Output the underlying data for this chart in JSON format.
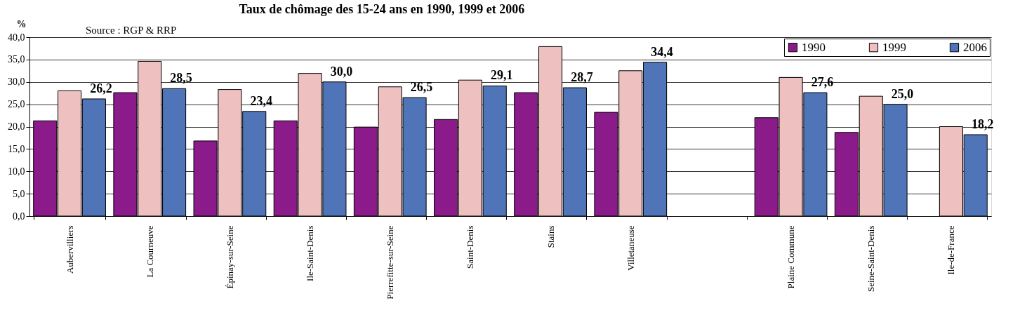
{
  "chart_data": {
    "type": "bar",
    "title": "Taux de chômage des 15-24 ans en 1990, 1999 et 2006",
    "ylabel": "%",
    "annotations": [
      "Source : RGP & RRP"
    ],
    "categories": [
      "Aubervilliers",
      "La Courneuve",
      "Épinay-sur-Seine",
      "Ile-Saint-Denis",
      "Pierrefitte-sur-Seine",
      "Saint-Denis",
      "Stains",
      "Villetaneuse",
      null,
      "Plaine Commune",
      "Seine-Saint-Denis",
      "Ile-de-France"
    ],
    "series": [
      {
        "name": "1990",
        "color": "#8b1a8b",
        "values": [
          21.3,
          27.6,
          16.8,
          21.3,
          19.9,
          21.6,
          27.6,
          23.2,
          null,
          22.0,
          18.7,
          null
        ]
      },
      {
        "name": "1999",
        "color": "#efc0c0",
        "values": [
          28.0,
          34.6,
          28.3,
          31.9,
          28.9,
          30.4,
          37.9,
          32.5,
          null,
          31.0,
          26.8,
          20.0
        ]
      },
      {
        "name": "2006",
        "color": "#4f74b8",
        "values": [
          26.2,
          28.5,
          23.4,
          30.0,
          26.5,
          29.1,
          28.7,
          34.4,
          null,
          27.6,
          25.0,
          18.2
        ],
        "value_labels": [
          "26,2",
          "28,5",
          "23,4",
          "30,0",
          "26,5",
          "29,1",
          "28,7",
          "34,4",
          null,
          "27,6",
          "25,0",
          "18,2"
        ]
      }
    ],
    "ylim": [
      0,
      40
    ],
    "yticks": [
      {
        "value": 0,
        "label": "0,0"
      },
      {
        "value": 5,
        "label": "5,0"
      },
      {
        "value": 10,
        "label": "10,0"
      },
      {
        "value": 15,
        "label": "15,0"
      },
      {
        "value": 20,
        "label": "20,0"
      },
      {
        "value": 25,
        "label": "25,0"
      },
      {
        "value": 30,
        "label": "30,0"
      },
      {
        "value": 35,
        "label": "35,0"
      },
      {
        "value": 40,
        "label": "40,0"
      }
    ],
    "grid": "y",
    "legend": "top right"
  }
}
